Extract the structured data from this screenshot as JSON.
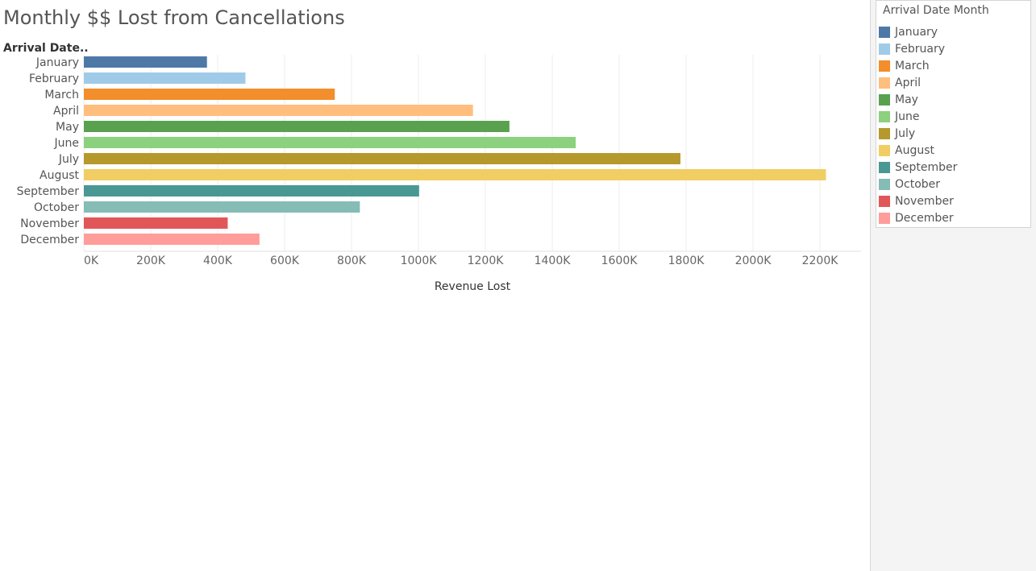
{
  "title": "Monthly $$ Lost from Cancellations",
  "legend": {
    "title": "Arrival Date Month"
  },
  "chart_data": {
    "type": "bar",
    "orientation": "horizontal",
    "title": "Monthly $$ Lost from Cancellations",
    "ylabel": "Arrival Date..",
    "xlabel": "Revenue Lost",
    "xlim": [
      0,
      2300000
    ],
    "grid": true,
    "legend_position": "right",
    "categories": [
      "January",
      "February",
      "March",
      "April",
      "May",
      "June",
      "July",
      "August",
      "September",
      "October",
      "November",
      "December"
    ],
    "values": [
      368000,
      483000,
      750000,
      1163000,
      1272000,
      1470000,
      1783000,
      2218000,
      1002000,
      825000,
      430000,
      525000
    ],
    "colors": [
      "#4e79a7",
      "#a0cbe8",
      "#f28e2b",
      "#ffbe7d",
      "#59a14f",
      "#8cd17d",
      "#b6992d",
      "#f1ce63",
      "#499894",
      "#86bcb6",
      "#e15759",
      "#ff9d9a"
    ],
    "ticks": [
      {
        "value": 0,
        "label": "0K"
      },
      {
        "value": 200000,
        "label": "200K"
      },
      {
        "value": 400000,
        "label": "400K"
      },
      {
        "value": 600000,
        "label": "600K"
      },
      {
        "value": 800000,
        "label": "800K"
      },
      {
        "value": 1000000,
        "label": "1000K"
      },
      {
        "value": 1200000,
        "label": "1200K"
      },
      {
        "value": 1400000,
        "label": "1400K"
      },
      {
        "value": 1600000,
        "label": "1600K"
      },
      {
        "value": 1800000,
        "label": "1800K"
      },
      {
        "value": 2000000,
        "label": "2000K"
      },
      {
        "value": 2200000,
        "label": "2200K"
      }
    ]
  }
}
